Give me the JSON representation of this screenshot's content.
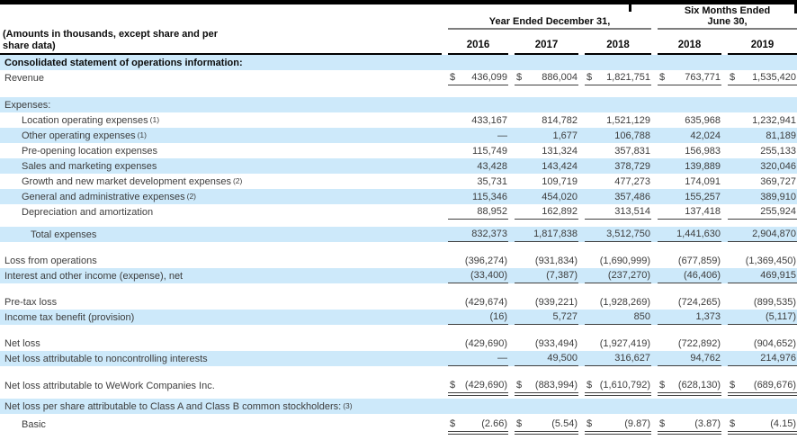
{
  "colors": {
    "row_highlight": "#cde9fa",
    "header_rule_gray": "#7d7d7d",
    "data_rule": "#3f3f3f"
  },
  "currency": "$",
  "header": {
    "amounts_note_l1": "(Amounts in thousands, except share and per",
    "amounts_note_l2": "share data)",
    "group1_label": "Year Ended December 31,",
    "group2_l1": "Six Months Ended",
    "group2_l2": "June 30,",
    "years": [
      "2016",
      "2017",
      "2018",
      "2018",
      "2019"
    ]
  },
  "rows": [
    {
      "label": "Consolidated statement of operations information:",
      "bold": true,
      "highlight": true,
      "indent": 0,
      "values": null
    },
    {
      "label": "Revenue",
      "indent": 0,
      "dollar": true,
      "underline": "single",
      "values": [
        "436,099",
        "886,004",
        "1,821,751",
        "763,771",
        "1,535,420"
      ]
    },
    {
      "type": "spacer",
      "h": 13
    },
    {
      "label": "Expenses:",
      "indent": 0,
      "highlight": true,
      "values": null
    },
    {
      "label": "Location operating expenses",
      "note": "(1)",
      "indent": 1,
      "values": [
        "433,167",
        "814,782",
        "1,521,129",
        "635,968",
        "1,232,941"
      ]
    },
    {
      "label": "Other operating expenses",
      "note": "(1)",
      "indent": 1,
      "highlight": true,
      "values": [
        "—",
        "1,677",
        "106,788",
        "42,024",
        "81,189"
      ]
    },
    {
      "label": "Pre-opening location expenses",
      "indent": 1,
      "values": [
        "115,749",
        "131,324",
        "357,831",
        "156,983",
        "255,133"
      ]
    },
    {
      "label": "Sales and marketing expenses",
      "indent": 1,
      "highlight": true,
      "values": [
        "43,428",
        "143,424",
        "378,729",
        "139,889",
        "320,046"
      ]
    },
    {
      "label": "Growth and new market development expenses",
      "note": "(2)",
      "indent": 1,
      "values": [
        "35,731",
        "109,719",
        "477,273",
        "174,091",
        "369,727"
      ]
    },
    {
      "label": "General and administrative expenses",
      "note": "(2)",
      "indent": 1,
      "highlight": true,
      "values": [
        "115,346",
        "454,020",
        "357,486",
        "155,257",
        "389,910"
      ]
    },
    {
      "label": "Depreciation and amortization",
      "indent": 1,
      "underline": "single",
      "values": [
        "88,952",
        "162,892",
        "313,514",
        "137,418",
        "255,924"
      ]
    },
    {
      "type": "spacer",
      "h": 8
    },
    {
      "label": "Total expenses",
      "indent": 2,
      "highlight": true,
      "underline": "single",
      "values": [
        "832,373",
        "1,817,838",
        "3,512,750",
        "1,441,630",
        "2,904,870"
      ]
    },
    {
      "type": "spacer",
      "h": 12
    },
    {
      "label": "Loss from operations",
      "indent": 0,
      "values": [
        "(396,274)",
        "(931,834)",
        "(1,690,999)",
        "(677,859)",
        "(1,369,450)"
      ]
    },
    {
      "label": "Interest and other income (expense), net",
      "indent": 0,
      "highlight": true,
      "underline": "single",
      "values": [
        "(33,400)",
        "(7,387)",
        "(237,270)",
        "(46,406)",
        "469,915"
      ]
    },
    {
      "type": "spacer",
      "h": 12
    },
    {
      "label": "Pre-tax loss",
      "indent": 0,
      "values": [
        "(429,674)",
        "(939,221)",
        "(1,928,269)",
        "(724,265)",
        "(899,535)"
      ]
    },
    {
      "label": "Income tax benefit (provision)",
      "indent": 0,
      "highlight": true,
      "underline": "single",
      "values": [
        "(16)",
        "5,727",
        "850",
        "1,373",
        "(5,117)"
      ]
    },
    {
      "type": "spacer",
      "h": 12
    },
    {
      "label": "Net loss",
      "indent": 0,
      "values": [
        "(429,690)",
        "(933,494)",
        "(1,927,419)",
        "(722,892)",
        "(904,652)"
      ]
    },
    {
      "label": "Net loss attributable to noncontrolling interests",
      "indent": 0,
      "highlight": true,
      "underline": "single",
      "values": [
        "—",
        "49,500",
        "316,627",
        "94,762",
        "214,976"
      ]
    },
    {
      "type": "spacer",
      "h": 10
    },
    {
      "label": "Net loss attributable to WeWork Companies Inc.",
      "indent": 0,
      "dollar": true,
      "tall": true,
      "underline": "double",
      "values": [
        "(429,690)",
        "(883,994)",
        "(1,610,792)",
        "(628,130)",
        "(689,676)"
      ]
    },
    {
      "type": "spacer",
      "h": 6
    },
    {
      "label": "Net loss per share attributable to Class A and Class B common stockholders:",
      "note": "(3)",
      "indent": 0,
      "highlight": true,
      "values": null
    },
    {
      "label": "Basic",
      "indent": 1,
      "dollar": true,
      "tall": true,
      "underline": "double",
      "values": [
        "(2.66)",
        "(5.54)",
        "(9.87)",
        "(3.87)",
        "(4.15)"
      ]
    }
  ]
}
